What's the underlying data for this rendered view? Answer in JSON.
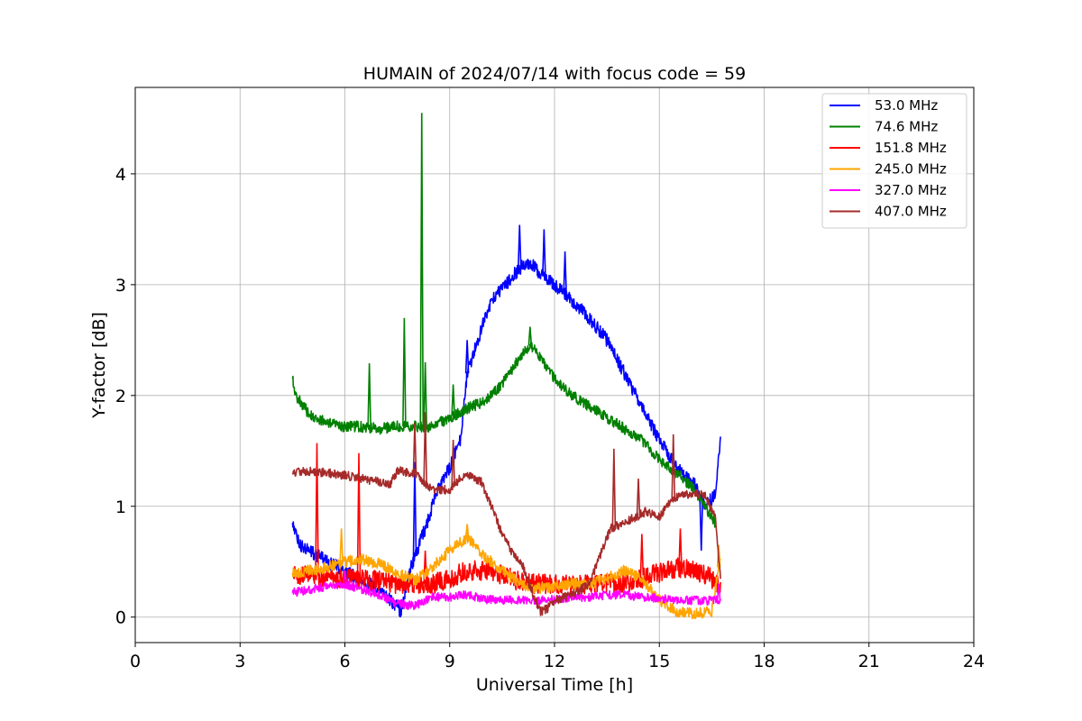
{
  "chart_data": {
    "type": "line",
    "title": "HUMAIN of 2024/07/14 with focus code = 59",
    "xlabel": "Universal Time [h]",
    "ylabel": "Y-factor [dB]",
    "xlim": [
      0,
      24
    ],
    "ylim": [
      -0.23,
      4.78
    ],
    "xticks": [
      0,
      3,
      6,
      9,
      12,
      15,
      18,
      21,
      24
    ],
    "yticks": [
      0,
      1,
      2,
      3,
      4
    ],
    "grid": true,
    "legend_position": "top-right",
    "series": [
      {
        "name": "53.0 MHz",
        "legend_label": " 53.0 MHz",
        "color": "#0000ff",
        "noise": 0.06,
        "x": [
          4.5,
          4.7,
          5.0,
          5.5,
          6.0,
          6.5,
          7.0,
          7.4,
          7.6,
          7.8,
          8.0,
          8.3,
          8.6,
          9.0,
          9.3,
          9.5,
          9.8,
          10.0,
          10.3,
          10.6,
          11.0,
          11.3,
          11.6,
          12.0,
          12.5,
          13.0,
          13.5,
          14.0,
          14.5,
          15.0,
          15.5,
          16.0,
          16.3,
          16.6,
          16.75
        ],
        "y": [
          0.85,
          0.65,
          0.6,
          0.5,
          0.42,
          0.33,
          0.25,
          0.12,
          0.05,
          0.35,
          0.55,
          0.8,
          1.1,
          1.35,
          1.6,
          2.2,
          2.5,
          2.7,
          2.9,
          3.0,
          3.15,
          3.2,
          3.1,
          3.0,
          2.85,
          2.7,
          2.5,
          2.2,
          1.9,
          1.6,
          1.35,
          1.2,
          1.0,
          1.1,
          1.6
        ],
        "spikes": [
          [
            8.0,
            1.4
          ],
          [
            9.5,
            2.5
          ],
          [
            11.0,
            3.54
          ],
          [
            11.7,
            3.5
          ],
          [
            12.3,
            3.3
          ],
          [
            16.2,
            0.6
          ]
        ]
      },
      {
        "name": "74.6 MHz",
        "legend_label": " 74.6 MHz",
        "color": "#008000",
        "noise": 0.05,
        "x": [
          4.5,
          4.6,
          5.0,
          5.5,
          6.0,
          6.5,
          7.0,
          7.5,
          8.0,
          8.5,
          9.0,
          9.5,
          10.0,
          10.5,
          11.0,
          11.3,
          11.6,
          12.0,
          12.5,
          13.0,
          13.5,
          14.0,
          14.5,
          15.0,
          15.5,
          16.0,
          16.3,
          16.6
        ],
        "y": [
          2.15,
          2.0,
          1.82,
          1.75,
          1.72,
          1.72,
          1.7,
          1.72,
          1.72,
          1.72,
          1.8,
          1.88,
          1.95,
          2.1,
          2.35,
          2.45,
          2.35,
          2.15,
          2.0,
          1.9,
          1.8,
          1.7,
          1.6,
          1.42,
          1.3,
          1.15,
          1.0,
          0.85
        ],
        "spikes": [
          [
            6.7,
            2.29
          ],
          [
            7.7,
            2.7
          ],
          [
            8.2,
            4.55
          ],
          [
            8.3,
            2.3
          ],
          [
            9.1,
            2.1
          ],
          [
            11.3,
            2.62
          ]
        ]
      },
      {
        "name": "151.8 MHz",
        "legend_label": "151.8 MHz",
        "color": "#ff0000",
        "noise": 0.09,
        "x": [
          4.5,
          5.0,
          6.0,
          7.0,
          7.5,
          8.0,
          8.5,
          9.0,
          9.5,
          10.0,
          10.5,
          11.0,
          11.5,
          12.0,
          12.5,
          13.0,
          13.5,
          14.0,
          14.5,
          15.0,
          15.5,
          16.0,
          16.5,
          16.75
        ],
        "y": [
          0.38,
          0.38,
          0.35,
          0.33,
          0.3,
          0.3,
          0.3,
          0.35,
          0.42,
          0.42,
          0.38,
          0.32,
          0.3,
          0.3,
          0.3,
          0.3,
          0.3,
          0.3,
          0.35,
          0.4,
          0.45,
          0.42,
          0.35,
          0.25
        ],
        "spikes": [
          [
            5.2,
            1.57
          ],
          [
            6.4,
            1.48
          ],
          [
            8.3,
            0.6
          ],
          [
            14.5,
            0.75
          ],
          [
            15.6,
            0.8
          ]
        ]
      },
      {
        "name": "245.0 MHz",
        "legend_label": "245.0 MHz",
        "color": "#ffa500",
        "noise": 0.05,
        "x": [
          4.5,
          5.0,
          5.5,
          6.0,
          6.5,
          7.0,
          7.5,
          8.0,
          8.5,
          9.0,
          9.5,
          10.0,
          10.5,
          11.0,
          11.5,
          12.0,
          12.5,
          13.0,
          13.5,
          14.0,
          14.5,
          15.0,
          15.5,
          16.0,
          16.5,
          16.75
        ],
        "y": [
          0.4,
          0.42,
          0.45,
          0.5,
          0.52,
          0.48,
          0.4,
          0.33,
          0.45,
          0.6,
          0.72,
          0.55,
          0.42,
          0.3,
          0.26,
          0.28,
          0.3,
          0.3,
          0.35,
          0.42,
          0.35,
          0.15,
          0.05,
          0.03,
          0.05,
          0.55
        ],
        "spikes": [
          [
            5.9,
            0.8
          ],
          [
            9.5,
            0.84
          ],
          [
            16.7,
            0.65
          ]
        ]
      },
      {
        "name": "327.0 MHz",
        "legend_label": "327.0 MHz",
        "color": "#ff00ff",
        "noise": 0.04,
        "x": [
          4.5,
          5.0,
          5.5,
          6.0,
          6.5,
          7.0,
          7.5,
          8.0,
          8.5,
          9.0,
          9.5,
          10.0,
          10.5,
          11.0,
          11.5,
          12.0,
          12.5,
          13.0,
          13.5,
          14.0,
          14.5,
          15.0,
          15.5,
          16.0,
          16.5,
          16.75
        ],
        "y": [
          0.22,
          0.25,
          0.28,
          0.3,
          0.25,
          0.2,
          0.12,
          0.1,
          0.18,
          0.18,
          0.2,
          0.16,
          0.15,
          0.16,
          0.15,
          0.16,
          0.18,
          0.18,
          0.2,
          0.2,
          0.18,
          0.17,
          0.16,
          0.15,
          0.15,
          0.15
        ],
        "spikes": [
          [
            6.0,
            0.42
          ],
          [
            16.7,
            0.3
          ]
        ]
      },
      {
        "name": "407.0 MHz",
        "legend_label": "407.0 MHz",
        "color": "#a52a2a",
        "noise": 0.04,
        "x": [
          4.5,
          5.0,
          5.5,
          6.0,
          6.5,
          7.0,
          7.3,
          7.5,
          8.0,
          8.5,
          9.0,
          9.3,
          9.6,
          9.9,
          10.2,
          10.5,
          10.8,
          11.1,
          11.4,
          11.6,
          11.8,
          12.0,
          12.5,
          13.0,
          13.3,
          13.6,
          14.0,
          14.3,
          14.6,
          15.0,
          15.3,
          15.6,
          16.0,
          16.3,
          16.6,
          16.75
        ],
        "y": [
          1.3,
          1.32,
          1.3,
          1.28,
          1.25,
          1.22,
          1.2,
          1.32,
          1.3,
          1.15,
          1.15,
          1.25,
          1.28,
          1.22,
          1.0,
          0.75,
          0.58,
          0.45,
          0.2,
          0.05,
          0.08,
          0.15,
          0.2,
          0.3,
          0.55,
          0.8,
          0.85,
          0.9,
          0.95,
          0.9,
          1.05,
          1.1,
          1.12,
          1.1,
          0.9,
          0.35
        ],
        "spikes": [
          [
            8.0,
            1.75
          ],
          [
            8.3,
            1.85
          ],
          [
            9.1,
            1.6
          ],
          [
            13.7,
            1.52
          ],
          [
            14.4,
            1.25
          ],
          [
            15.4,
            1.65
          ]
        ]
      }
    ]
  }
}
